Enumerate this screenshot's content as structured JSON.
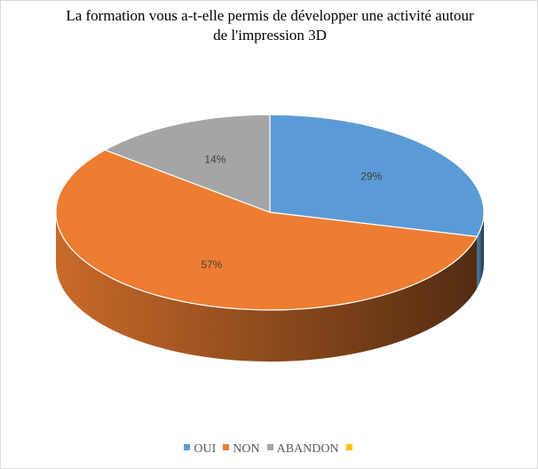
{
  "chart_data": {
    "type": "pie",
    "title_lines": [
      "La formation vous a-t-elle permis de développer une activité autour",
      "de l'impression 3D"
    ],
    "categories": [
      "OUI",
      "NON",
      "ABANDON",
      ""
    ],
    "values": [
      29,
      57,
      14,
      0
    ],
    "data_labels": [
      "29%",
      "57%",
      "14%",
      ""
    ],
    "colors": [
      "#5b9bd5",
      "#ed7d31",
      "#a5a5a5",
      "#ffc000"
    ],
    "legend_position": "bottom"
  }
}
